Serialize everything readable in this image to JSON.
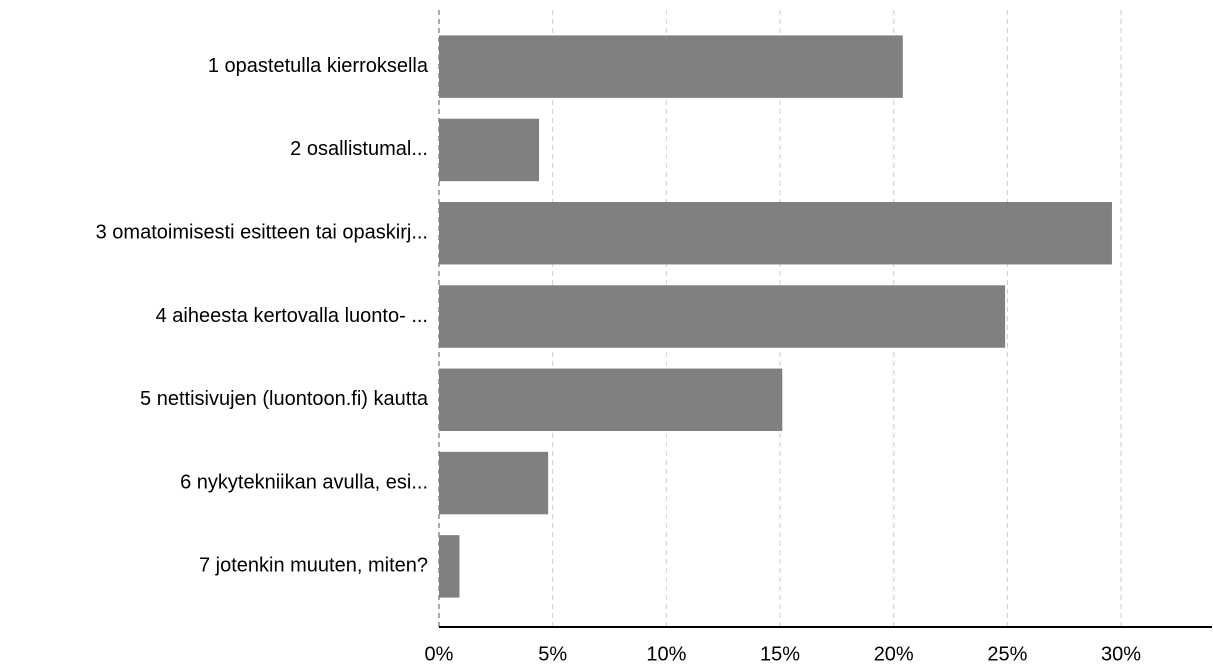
{
  "chart_data": {
    "type": "bar",
    "orientation": "horizontal",
    "categories": [
      "1 opastetulla kierroksella",
      "2 osallistumal...",
      "3 omatoimisesti esitteen tai opaskirj...",
      "4 aiheesta kertovalla luonto- ...",
      "5 nettisivujen (luontoon.fi) kautta",
      "6 nykytekniikan avulla, esi...",
      "7 jotenkin muuten, miten?"
    ],
    "values": [
      20.4,
      4.4,
      29.6,
      24.9,
      15.1,
      4.8,
      0.9
    ],
    "color": "#808080",
    "xlim": [
      0,
      34
    ],
    "xticks": [
      {
        "value": 0,
        "label": "0%"
      },
      {
        "value": 5,
        "label": "5%"
      },
      {
        "value": 10,
        "label": "10%"
      },
      {
        "value": 15,
        "label": "15%"
      },
      {
        "value": 20,
        "label": "20%"
      },
      {
        "value": 25,
        "label": "25%"
      },
      {
        "value": 30,
        "label": "30%"
      }
    ],
    "grid": true
  }
}
